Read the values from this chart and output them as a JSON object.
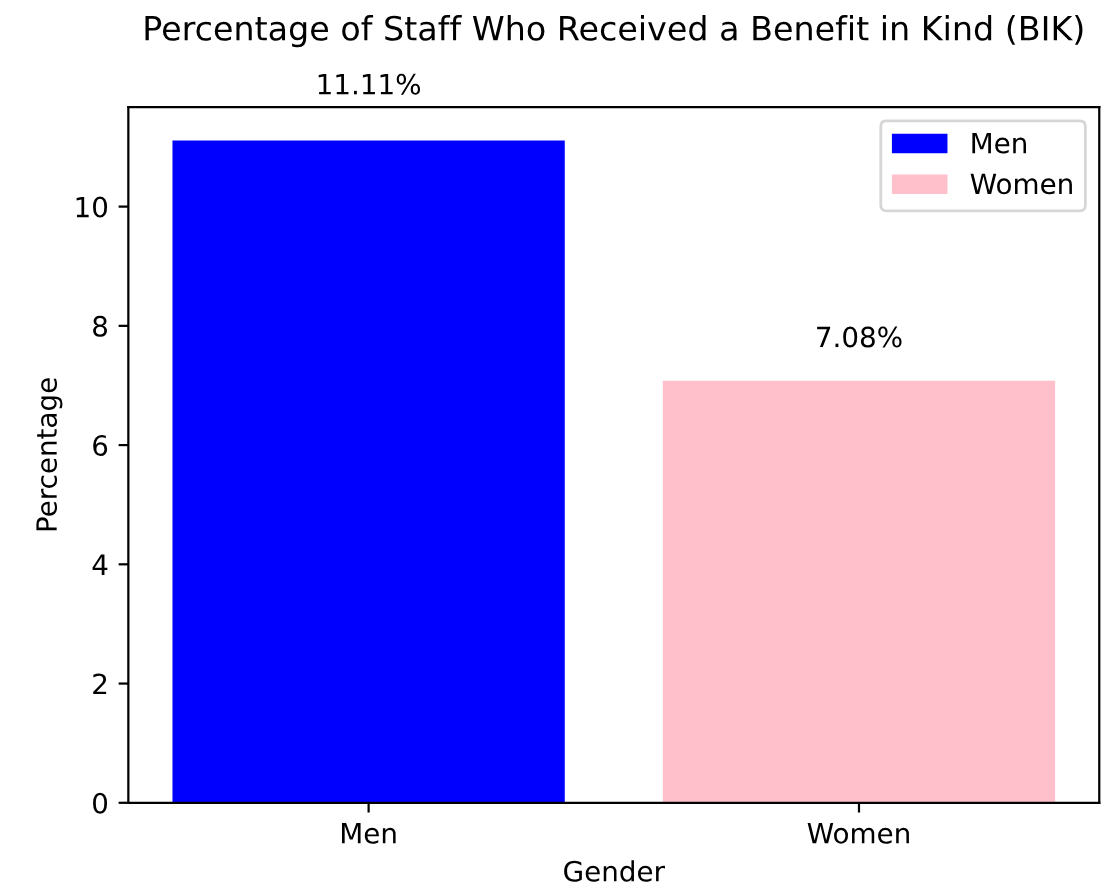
{
  "chart_data": {
    "type": "bar",
    "title": "Percentage of Staff Who Received a Benefit in Kind (BIK)",
    "xlabel": "Gender",
    "ylabel": "Percentage",
    "categories": [
      "Men",
      "Women"
    ],
    "series": [
      {
        "name": "Men",
        "color": "#0000ff",
        "values": [
          11.11,
          null
        ],
        "value_labels": [
          "11.11%",
          null
        ]
      },
      {
        "name": "Women",
        "color": "#ffc0cb",
        "values": [
          null,
          7.08
        ],
        "value_labels": [
          null,
          "7.08%"
        ]
      }
    ],
    "ylim": [
      0,
      11.67
    ],
    "yticks": [
      0,
      2,
      4,
      6,
      8,
      10
    ],
    "legend": "top right",
    "grid": false
  }
}
